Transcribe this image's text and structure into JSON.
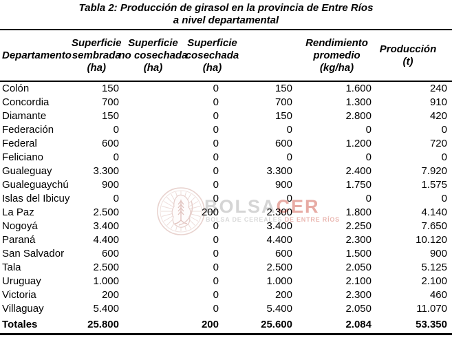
{
  "title": {
    "line1": "Tabla 2: Producción de girasol en la provincia de Entre Ríos",
    "line2": "a nivel departamental"
  },
  "table": {
    "columns": [
      "Departamento",
      "Superficie\nsembrada\n(ha)",
      "Superficie\nno cosechada\n(ha)",
      "Superficie\ncosechada\n(ha)",
      "Rendimiento\npromedio\n(kg/ha)",
      "Producción\n(t)"
    ],
    "rows": [
      [
        "Colón",
        "150",
        "0",
        "150",
        "1.600",
        "240"
      ],
      [
        "Concordia",
        "700",
        "0",
        "700",
        "1.300",
        "910"
      ],
      [
        "Diamante",
        "150",
        "0",
        "150",
        "2.800",
        "420"
      ],
      [
        "Federación",
        "0",
        "0",
        "0",
        "0",
        "0"
      ],
      [
        "Federal",
        "600",
        "0",
        "600",
        "1.200",
        "720"
      ],
      [
        "Feliciano",
        "0",
        "0",
        "0",
        "0",
        "0"
      ],
      [
        "Gualeguay",
        "3.300",
        "0",
        "3.300",
        "2.400",
        "7.920"
      ],
      [
        "Gualeguaychú",
        "900",
        "0",
        "900",
        "1.750",
        "1.575"
      ],
      [
        "Islas del Ibicuy",
        "0",
        "0",
        "0",
        "0",
        "0"
      ],
      [
        "La Paz",
        "2.500",
        "200",
        "2.300",
        "1.800",
        "4.140"
      ],
      [
        "Nogoyá",
        "3.400",
        "0",
        "3.400",
        "2.250",
        "7.650"
      ],
      [
        "Paraná",
        "4.400",
        "0",
        "4.400",
        "2.300",
        "10.120"
      ],
      [
        "San Salvador",
        "600",
        "0",
        "600",
        "1.500",
        "900"
      ],
      [
        "Tala",
        "2.500",
        "0",
        "2.500",
        "2.050",
        "5.125"
      ],
      [
        "Uruguay",
        "1.000",
        "0",
        "1.000",
        "2.100",
        "2.100"
      ],
      [
        "Victoria",
        "200",
        "0",
        "200",
        "2.300",
        "460"
      ],
      [
        "Villaguay",
        "5.400",
        "0",
        "5.400",
        "2.050",
        "11.070"
      ]
    ],
    "totals_row": [
      "Totales",
      "25.800",
      "200",
      "25.600",
      "2.084",
      "53.350"
    ]
  },
  "watermark": {
    "brand_gray": "BOLSA",
    "brand_red": "CER",
    "subtitle_gray": "BOLSA DE CEREALES ",
    "subtitle_red": "DE ENTRE RÍOS",
    "colors": {
      "brand_gray": "#d5d5d5",
      "brand_red": "#e7aba4",
      "emblem_stroke": "#e8d2ce"
    }
  }
}
